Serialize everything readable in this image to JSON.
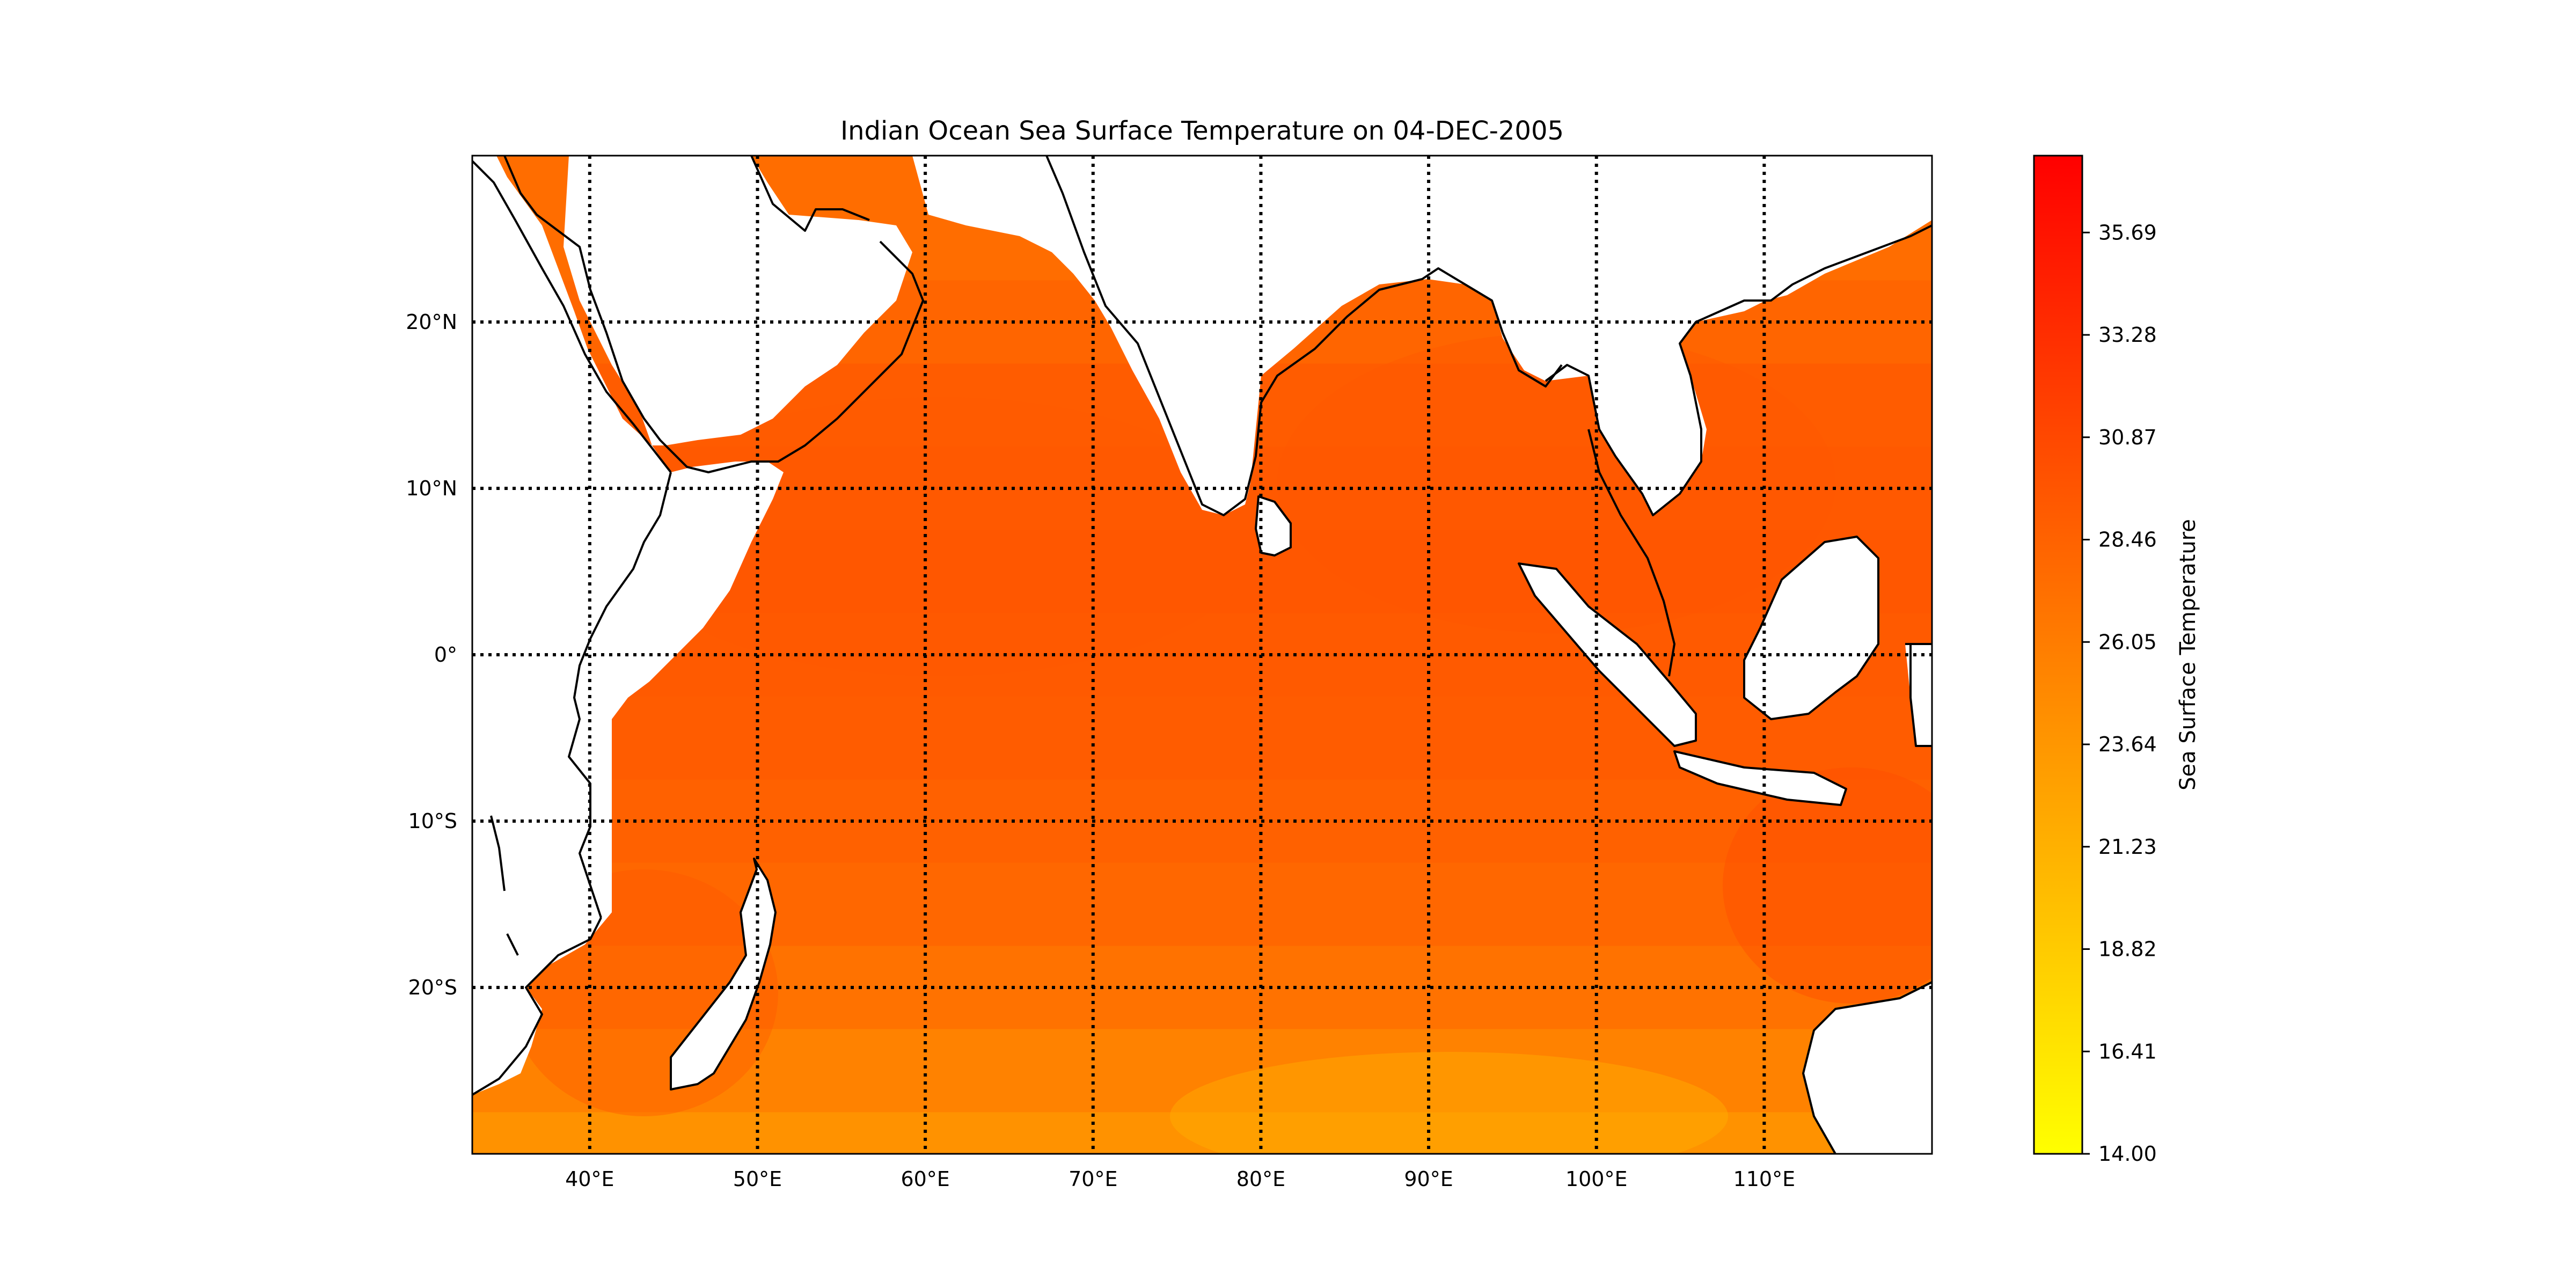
{
  "chart_data": {
    "type": "heatmap",
    "title": "Indian Ocean Sea Surface Temperature on 04-DEC-2005",
    "projection": "plate-carree",
    "lon_range": [
      33,
      120
    ],
    "lat_range": [
      -30,
      30
    ],
    "lon_ticks": [
      {
        "value": 40,
        "label": "40°E"
      },
      {
        "value": 50,
        "label": "50°E"
      },
      {
        "value": 60,
        "label": "60°E"
      },
      {
        "value": 70,
        "label": "70°E"
      },
      {
        "value": 80,
        "label": "80°E"
      },
      {
        "value": 90,
        "label": "90°E"
      },
      {
        "value": 100,
        "label": "100°E"
      },
      {
        "value": 110,
        "label": "110°E"
      }
    ],
    "lat_ticks": [
      {
        "value": 20,
        "label": "20°N"
      },
      {
        "value": 10,
        "label": "10°N"
      },
      {
        "value": 0,
        "label": "0°"
      },
      {
        "value": -10,
        "label": "10°S"
      },
      {
        "value": -20,
        "label": "20°S"
      }
    ],
    "grid": true,
    "grid_style": "dotted",
    "colorbar": {
      "label": "Sea Surface Temperature",
      "min": 14.0,
      "max": 37.5,
      "colormap": "autumn_r",
      "color_low": "#ffff00",
      "color_high": "#ff0000",
      "ticks": [
        {
          "value": 14.0,
          "label": "14.00"
        },
        {
          "value": 16.41,
          "label": "16.41"
        },
        {
          "value": 18.82,
          "label": "18.82"
        },
        {
          "value": 21.23,
          "label": "21.23"
        },
        {
          "value": 23.64,
          "label": "23.64"
        },
        {
          "value": 26.05,
          "label": "26.05"
        },
        {
          "value": 28.46,
          "label": "28.46"
        },
        {
          "value": 30.87,
          "label": "30.87"
        },
        {
          "value": 33.28,
          "label": "33.28"
        },
        {
          "value": 35.69,
          "label": "35.69"
        }
      ]
    },
    "sst_field": {
      "description": "approximate SST (degrees C) by latitude band",
      "lat": [
        25,
        20,
        15,
        10,
        5,
        0,
        -5,
        -10,
        -15,
        -20,
        -25,
        -30
      ],
      "sst": [
        27.5,
        28.2,
        29.0,
        29.3,
        29.5,
        29.2,
        29.0,
        28.6,
        28.0,
        27.0,
        25.5,
        24.0
      ]
    },
    "land_color": "#ffffff",
    "coastline_color": "#000000"
  }
}
